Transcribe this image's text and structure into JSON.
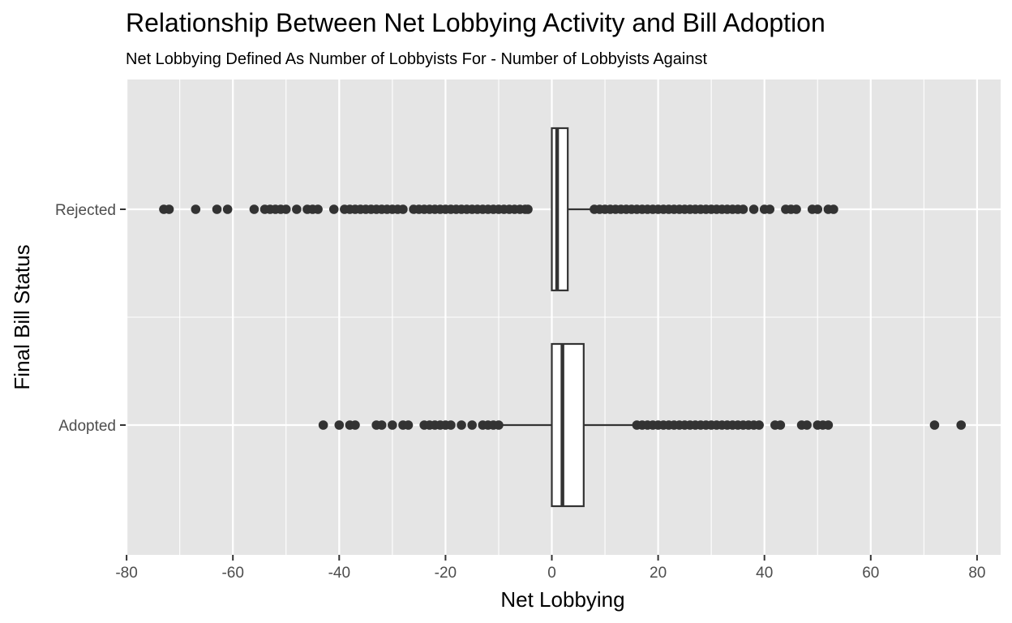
{
  "chart_data": {
    "type": "boxplot",
    "orientation": "horizontal",
    "title": "Relationship Between Net Lobbying Activity and Bill Adoption",
    "subtitle": "Net Lobbying Defined As Number of Lobbyists For - Number of Lobbyists Against",
    "xlabel": "Net Lobbying",
    "ylabel": "Final Bill Status",
    "xlim": [
      -80,
      84
    ],
    "x_ticks": [
      -80,
      -60,
      -40,
      -20,
      0,
      20,
      40,
      60,
      80
    ],
    "x_tick_labels": [
      "-80",
      "-60",
      "-40",
      "-20",
      "0",
      "20",
      "40",
      "60",
      "80"
    ],
    "categories": [
      "Rejected",
      "Adopted"
    ],
    "grid": true,
    "legend": "none",
    "colors": {
      "panel_background": "#e5e5e5",
      "grid_line": "#ffffff",
      "box_fill": "#ffffff",
      "box_stroke": "#333333",
      "outlier": "#333333",
      "tick_label": "#4d4d4d"
    },
    "boxes": [
      {
        "category": "Rejected",
        "min": 0,
        "q1": 0,
        "median": 1,
        "q3": 3,
        "max": 7.5,
        "outliers": [
          -73,
          -72,
          -67,
          -63,
          -61,
          -56,
          -54,
          -53,
          -52,
          -51,
          -50,
          -48,
          -46,
          -45,
          -44,
          -41,
          -39,
          -38,
          -37,
          -36,
          -35,
          -34,
          -33,
          -32,
          -31,
          -30,
          -29,
          -28,
          -26,
          -25,
          -24,
          -23,
          -22,
          -21,
          -20,
          -19,
          -18,
          -17,
          -16,
          -15,
          -14,
          -13,
          -12,
          -11,
          -10,
          -9,
          -8,
          -7,
          -6,
          -5,
          -4.5,
          8,
          9,
          10,
          11,
          12,
          13,
          14,
          15,
          16,
          17,
          18,
          19,
          20,
          21,
          22,
          23,
          24,
          25,
          26,
          27,
          28,
          29,
          30,
          31,
          32,
          33,
          34,
          35,
          36,
          38,
          40,
          41,
          44,
          45,
          46,
          49,
          50,
          52,
          53
        ]
      },
      {
        "category": "Adopted",
        "min": -9.5,
        "q1": 0,
        "median": 2,
        "q3": 6,
        "max": 15.5,
        "outliers": [
          -43,
          -40,
          -38,
          -37,
          -33,
          -32,
          -30,
          -28,
          -27,
          -24,
          -23,
          -22,
          -21,
          -20,
          -19,
          -17,
          -15,
          -13,
          -12,
          -11,
          -10,
          16,
          17,
          18,
          19,
          20,
          21,
          22,
          23,
          24,
          25,
          26,
          27,
          28,
          29,
          30,
          31,
          32,
          33,
          34,
          35,
          36,
          37,
          38,
          39,
          42,
          43,
          47,
          48,
          50,
          51,
          52,
          72,
          77
        ]
      }
    ]
  }
}
